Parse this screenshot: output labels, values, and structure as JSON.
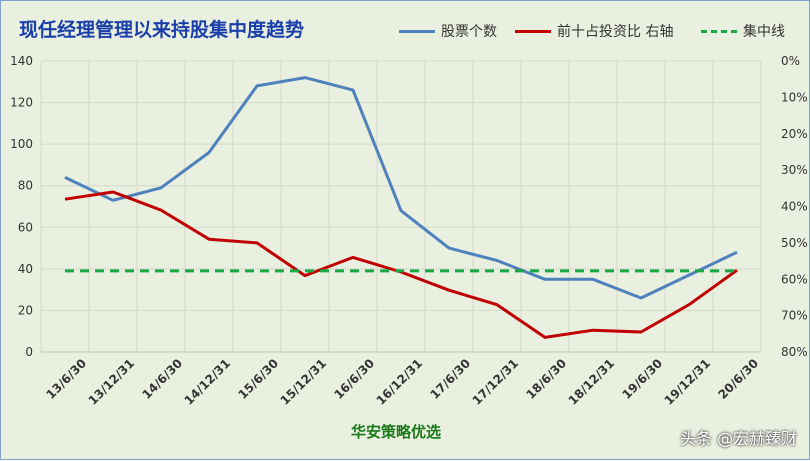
{
  "title": "现任经理管理以来持股集中度趋势",
  "subtitle": "华安策略优选",
  "watermark": "头条 @宏赫臻财",
  "legend": [
    {
      "label": "股票个数",
      "color": "#4f81bd",
      "style": "solid"
    },
    {
      "label": "前十占投资比 右轴",
      "color": "#c00000",
      "style": "solid"
    },
    {
      "label": "集中线",
      "color": "#1aa845",
      "style": "dashed"
    }
  ],
  "chart_data": {
    "type": "line",
    "title": "现任经理管理以来持股集中度趋势",
    "categories": [
      "13/6/30",
      "13/12/31",
      "14/6/30",
      "14/12/31",
      "15/6/30",
      "15/12/31",
      "16/6/30",
      "16/12/31",
      "17/6/30",
      "17/12/31",
      "18/6/30",
      "18/12/31",
      "19/6/30",
      "19/12/31",
      "20/6/30"
    ],
    "left_axis": {
      "min": 0,
      "max": 140,
      "ticks": [
        0,
        20,
        40,
        60,
        80,
        100,
        120,
        140
      ]
    },
    "right_axis": {
      "min": 0,
      "max": 80,
      "unit": "%",
      "inverted": true,
      "ticks": [
        0,
        10,
        20,
        30,
        40,
        50,
        60,
        70,
        80
      ]
    },
    "series": [
      {
        "name": "股票个数",
        "axis": "left",
        "color": "#4f81bd",
        "values": [
          84,
          73,
          79,
          96,
          128,
          132,
          126,
          68,
          50,
          44,
          35,
          35,
          26,
          37,
          48
        ]
      },
      {
        "name": "前十占投资比 右轴",
        "axis": "right",
        "unit": "%",
        "color": "#c00000",
        "values": [
          38,
          36,
          41,
          49,
          50,
          59,
          54,
          58,
          63,
          67,
          76,
          74,
          74.5,
          67,
          57.5
        ]
      },
      {
        "name": "集中线",
        "axis": "left",
        "color": "#1aa845",
        "dashed": true,
        "values": [
          39,
          39,
          39,
          39,
          39,
          39,
          39,
          39,
          39,
          39,
          39,
          39,
          39,
          39,
          39
        ]
      }
    ],
    "grid": true
  }
}
